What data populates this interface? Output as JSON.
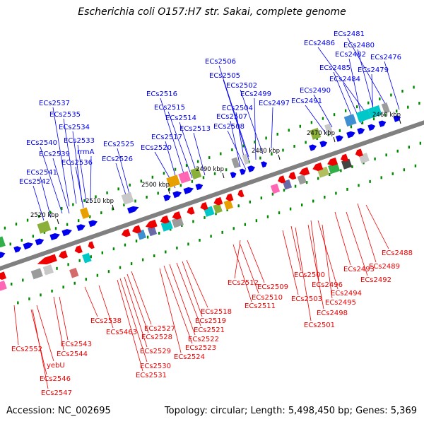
{
  "header": {
    "title": "Escherichia coli O157:H7 str. Sakai, complete genome"
  },
  "footer": {
    "accession": "Accession: NC_002695",
    "topology": "Topology: circular; Length: 5,498,450 bp; Genes: 5,369"
  },
  "colors": {
    "forward": "#0000ee",
    "reverse": "#ee0000",
    "backbone": "#808080",
    "tick_marks": "#008800"
  },
  "positions": [
    "2460 kbp",
    "2470 kbp",
    "2480 kbp",
    "2490 kbp",
    "2500 kbp",
    "2510 kbp",
    "2520 kbp"
  ],
  "forward_genes": [
    "ECs2481",
    "ECs2486",
    "ECs2480",
    "ECs2482",
    "ECs2476",
    "ECs2485",
    "ECs2479",
    "ECs2484",
    "ECs2490",
    "ECs2491",
    "ECs2506",
    "ECs2505",
    "ECs2502",
    "ECs2499",
    "ECs2504",
    "ECs2497",
    "ECs2507",
    "ECs2508",
    "ECs2516",
    "ECs2515",
    "ECs2514",
    "ECs2513",
    "ECs2517",
    "ECs2520",
    "ECs2537",
    "ECs2535",
    "ECs2534",
    "ECs2533",
    "rrmA",
    "ECs2536",
    "ECs2540",
    "ECs2539",
    "ECs2525",
    "ECs2526",
    "ECs2541",
    "ECs2542"
  ],
  "reverse_genes": [
    "ECs2488",
    "ECs2489",
    "ECs2493",
    "ECs2492",
    "ECs2500",
    "ECs2496",
    "ECs2494",
    "ECs2495",
    "ECs2498",
    "ECs2501",
    "ECs2503",
    "ECs2512",
    "ECs2509",
    "ECs2510",
    "ECs2511",
    "ECs2518",
    "ECs2519",
    "ECs2521",
    "ECs2522",
    "ECs2523",
    "ECs2524",
    "ECs2527",
    "ECs2528",
    "ECs2529",
    "ECs2530",
    "ECs2531",
    "ECs2538",
    "ECs5463",
    "ECs2543",
    "ECs2544",
    "ECs2552",
    "yebU",
    "ECs2546",
    "ECs2547"
  ]
}
